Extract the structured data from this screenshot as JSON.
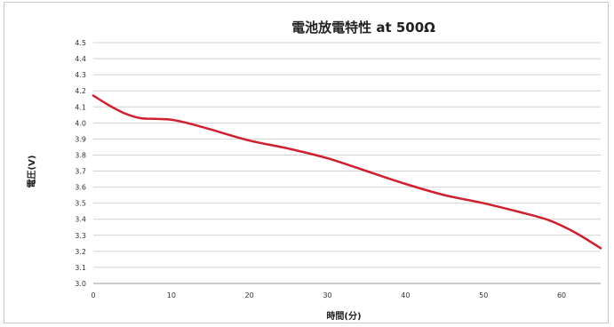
{
  "chart_data": {
    "type": "line",
    "title": "電池放電特性 at 500Ω",
    "xlabel": "時間(分)",
    "ylabel": "電圧(V)",
    "xlim": [
      0,
      65
    ],
    "ylim": [
      3.0,
      4.5
    ],
    "x_ticks": [
      0,
      10,
      20,
      30,
      40,
      50,
      60
    ],
    "y_ticks": [
      "3.0",
      "3.1",
      "3.2",
      "3.3",
      "3.4",
      "3.5",
      "3.6",
      "3.7",
      "3.8",
      "3.9",
      "4.0",
      "4.1",
      "4.2",
      "4.3",
      "4.4",
      "4.5"
    ],
    "grid": "horizontal",
    "legend": "none",
    "series": [
      {
        "color": "#d0202e",
        "x": [
          0,
          2,
          4,
          6,
          8,
          10,
          12,
          15,
          20,
          25,
          30,
          35,
          40,
          45,
          50,
          55,
          58,
          60,
          62,
          65
        ],
        "y": [
          4.17,
          4.11,
          4.06,
          4.03,
          4.025,
          4.02,
          4.0,
          3.96,
          3.89,
          3.84,
          3.78,
          3.7,
          3.62,
          3.55,
          3.5,
          3.44,
          3.4,
          3.36,
          3.31,
          3.22
        ]
      }
    ]
  }
}
